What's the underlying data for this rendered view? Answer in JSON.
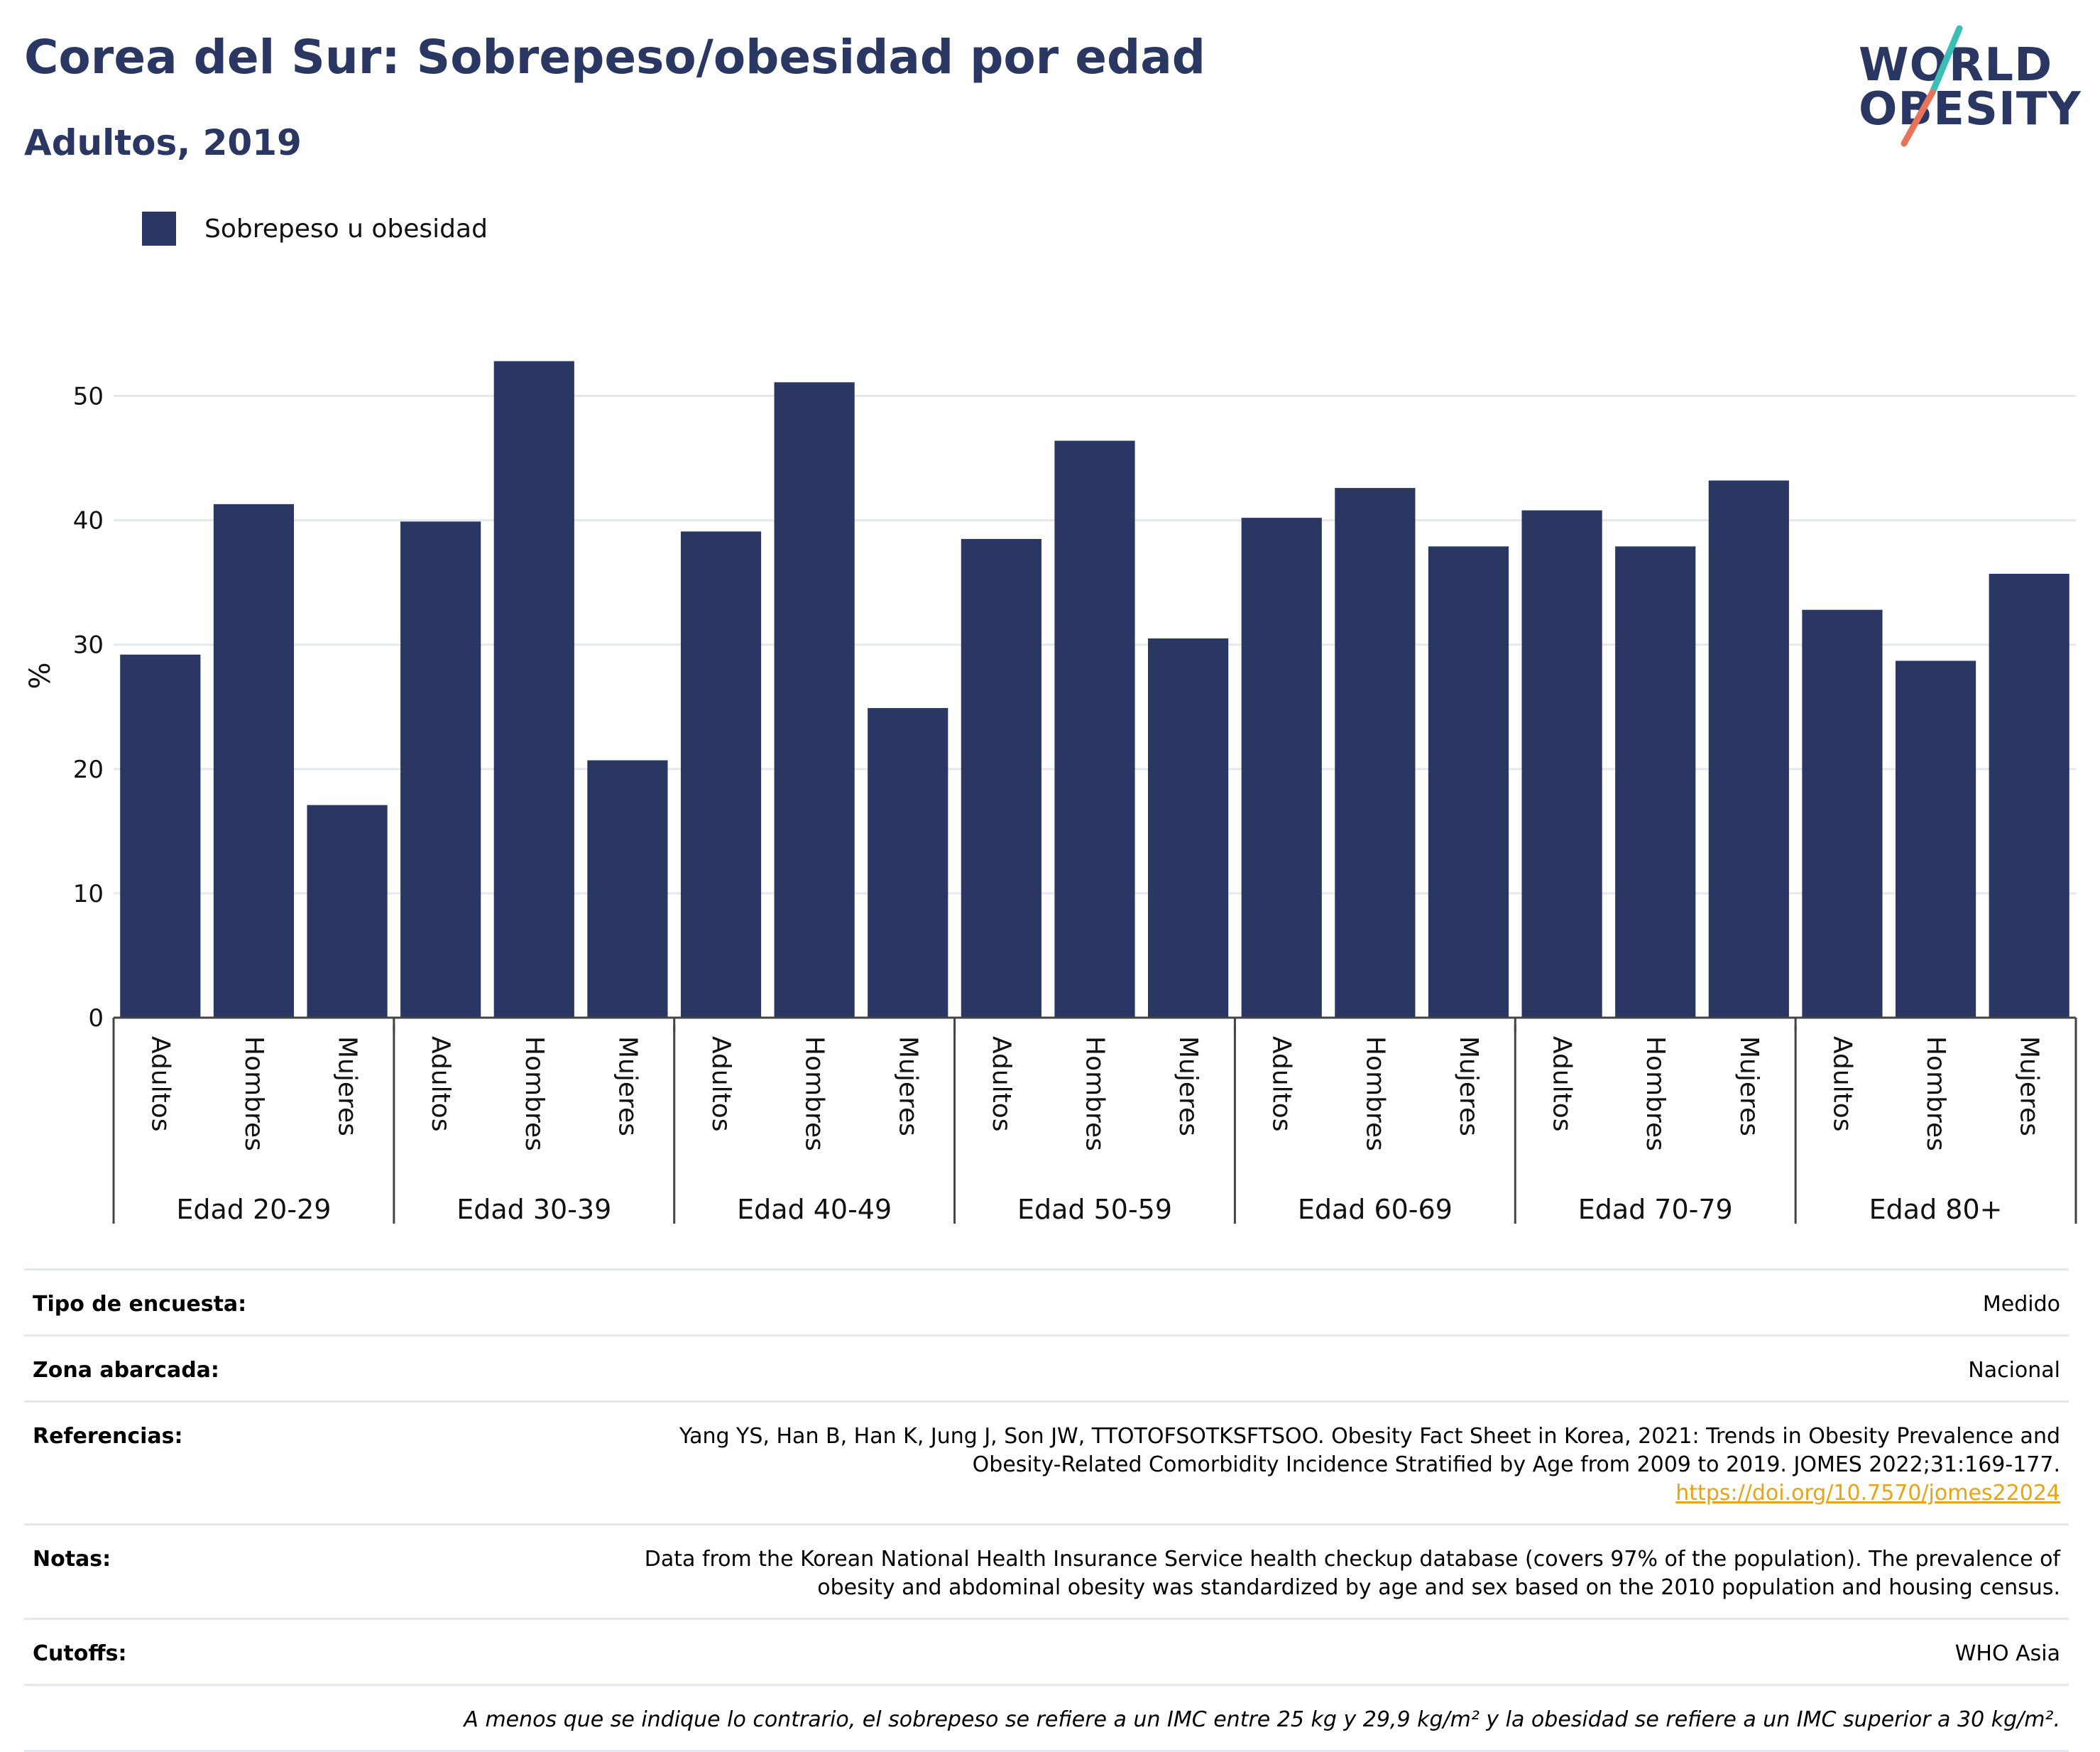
{
  "title": "Corea del Sur: Sobrepeso/obesidad por edad",
  "subtitle": "Adultos, 2019",
  "logo": {
    "line1": "WORLD",
    "line2": "OBESITY",
    "accent_teal": "#3bbfb4",
    "accent_coral": "#e8735a"
  },
  "legend": {
    "label": "Sobrepeso u obesidad",
    "color": "#2a3762"
  },
  "chart_data": {
    "type": "bar",
    "ylabel": "%",
    "ylim": [
      0,
      55
    ],
    "yticks": [
      0,
      10,
      20,
      30,
      40,
      50
    ],
    "grid": true,
    "legend_position": "top-left",
    "color": "#2a3762",
    "groups": [
      "Edad 20-29",
      "Edad 30-39",
      "Edad 40-49",
      "Edad 50-59",
      "Edad 60-69",
      "Edad 70-79",
      "Edad 80+"
    ],
    "categories": [
      "Adultos",
      "Hombres",
      "Mujeres"
    ],
    "series": [
      {
        "name": "Sobrepeso u obesidad",
        "values": [
          [
            29.2,
            41.3,
            17.1
          ],
          [
            39.9,
            52.8,
            20.7
          ],
          [
            39.1,
            51.1,
            24.9
          ],
          [
            38.5,
            46.4,
            30.5
          ],
          [
            40.2,
            42.6,
            37.9
          ],
          [
            40.8,
            37.9,
            43.2
          ],
          [
            32.8,
            28.7,
            35.7
          ]
        ]
      }
    ]
  },
  "meta": {
    "survey_type": {
      "label": "Tipo de encuesta:",
      "value": "Medido"
    },
    "coverage": {
      "label": "Zona abarcada:",
      "value": "Nacional"
    },
    "references": {
      "label": "Referencias:",
      "line1": "Yang YS, Han B, Han K, Jung J, Son JW, TTOTOFSOTKSFTSOO. Obesity Fact Sheet in Korea, 2021: Trends in Obesity Prevalence and",
      "line2": "Obesity-Related Comorbidity Incidence Stratified by Age from 2009 to 2019. JOMES 2022;31:169-177.",
      "link": "https://doi.org/10.7570/jomes22024"
    },
    "notes": {
      "label": "Notas:",
      "line1": "Data from the Korean National Health Insurance Service health checkup database (covers 97% of the population). The prevalence of",
      "line2": "obesity and abdominal obesity was standardized by age and sex based on the 2010 population and housing census."
    },
    "cutoffs": {
      "label": "Cutoffs:",
      "value": "WHO Asia"
    },
    "footnote": "A menos que se indique lo contrario, el sobrepeso se refiere a un IMC entre 25 kg y 29,9 kg/m² y la obesidad se refiere a un IMC superior a 30 kg/m²."
  }
}
